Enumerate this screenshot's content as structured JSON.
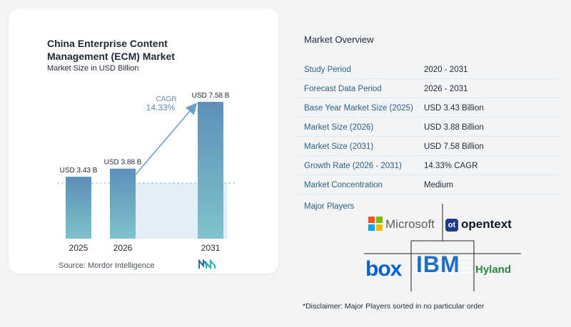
{
  "chart_data": {
    "type": "bar",
    "title": "China Enterprise Content Management (ECM) Market",
    "subtitle": "Market Size in USD Billion",
    "categories": [
      "2025",
      "2026",
      "2031"
    ],
    "values": [
      3.43,
      3.88,
      7.58
    ],
    "value_labels": [
      "USD 3.43 B",
      "USD 3.88 B",
      "USD 7.58 B"
    ],
    "cagr_label": "CAGR",
    "cagr_value": "14.33%",
    "ylim": [
      0,
      7.58
    ],
    "grid": false,
    "colors": {
      "bar": "#6f9fc4",
      "bar_top": "#5d8fb8",
      "bar_bottom": "#7fc3cc",
      "shade": "#e3eef7",
      "arrow": "#6d9fc6",
      "dashed": "#9bb4c9"
    }
  },
  "source": "Source:  Mordor Intelligence",
  "overview": {
    "title": "Market Overview",
    "rows": [
      {
        "key": "Study Period",
        "value": "2020 - 2031"
      },
      {
        "key": "Forecast Data Period",
        "value": "2026 - 2031"
      },
      {
        "key": "Base Year Market Size (2025)",
        "value": "USD 3.43 Billion"
      },
      {
        "key": "Market Size (2026)",
        "value": "USD 3.88 Billion"
      },
      {
        "key": "Market Size (2031)",
        "value": "USD 7.58 Billion"
      },
      {
        "key": "Growth Rate (2026 - 2031)",
        "value": "14.33% CAGR"
      },
      {
        "key": "Market Concentration",
        "value": "Medium"
      }
    ]
  },
  "players": {
    "title": "Major Players",
    "microsoft": "Microsoft",
    "opentext": "opentext",
    "opentext_badge": "ot",
    "box": "box",
    "ibm": "IBM",
    "hyland": "Hyland"
  },
  "disclaimer": "*Disclaimer: Major Players sorted in no particular order"
}
